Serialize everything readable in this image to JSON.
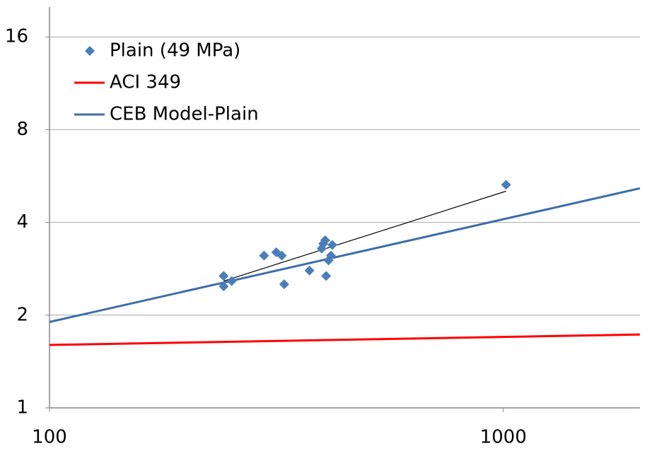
{
  "chart_data": {
    "type": "scatter",
    "xscale": "log",
    "yscale": "log",
    "xlim": [
      100,
      2000
    ],
    "xticks": [
      100,
      1000
    ],
    "ylim": [
      1,
      20
    ],
    "yticks": [
      1,
      2,
      4,
      8,
      16
    ],
    "grid": true,
    "legend": "top-left",
    "series": [
      {
        "name": "Plain (49 MPa)",
        "color": "#4a7ebb",
        "mode": "markers",
        "marker": "diamond",
        "x": [
          242,
          242,
          252,
          297,
          316,
          325,
          329,
          374,
          398,
          401,
          405,
          407,
          412,
          417,
          420,
          1014
        ],
        "values": [
          2.68,
          2.48,
          2.58,
          3.12,
          3.2,
          3.12,
          2.52,
          2.79,
          3.29,
          3.41,
          3.5,
          2.68,
          3.01,
          3.12,
          3.38,
          5.3
        ]
      },
      {
        "name": "ACI 349",
        "color": "#ff0000",
        "mode": "line",
        "x": [
          100,
          2000
        ],
        "values": [
          1.6,
          1.73
        ]
      },
      {
        "name": "CEB Model-Plain",
        "color": "#3d6eaa",
        "mode": "line",
        "x": [
          100,
          2000
        ],
        "values": [
          1.9,
          5.16
        ]
      }
    ],
    "trendline": {
      "color": "#000000",
      "x": [
        242,
        1014
      ],
      "values": [
        2.58,
        5.05
      ]
    }
  }
}
